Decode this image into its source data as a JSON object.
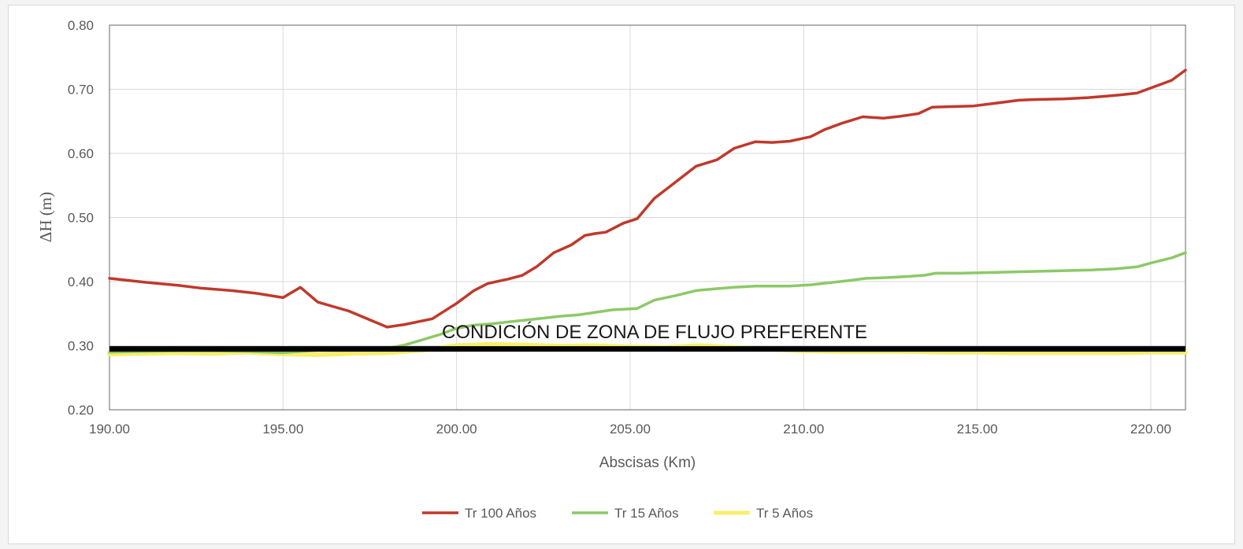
{
  "chart_data": {
    "type": "line",
    "xlabel": "Abscisas (Km)",
    "ylabel": "ΔH (m)",
    "xlim": [
      190,
      221
    ],
    "ylim": [
      0.2,
      0.8
    ],
    "x_ticks": [
      "190.00",
      "195.00",
      "200.00",
      "205.00",
      "210.00",
      "215.00",
      "220.00"
    ],
    "y_ticks": [
      "0.20",
      "0.30",
      "0.40",
      "0.50",
      "0.60",
      "0.70",
      "0.80"
    ],
    "grid": true,
    "legend_position": "bottom",
    "annotation": {
      "text": "CONDICIÓN DE ZONA DE FLUJO PREFERENTE",
      "threshold_y": 0.295,
      "color": "#000000"
    },
    "series": [
      {
        "name": "Tr 100 Años",
        "color": "#c0392b",
        "x": [
          190.0,
          191.0,
          192.0,
          192.6,
          193.5,
          194.2,
          195.0,
          195.5,
          196.0,
          196.9,
          197.6,
          198.0,
          198.5,
          199.3,
          200.0,
          200.5,
          200.9,
          201.5,
          201.9,
          202.3,
          202.8,
          203.3,
          203.7,
          204.0,
          204.3,
          204.8,
          205.2,
          205.7,
          206.3,
          206.9,
          207.5,
          208.0,
          208.6,
          209.1,
          209.6,
          210.2,
          210.6,
          211.1,
          211.7,
          212.3,
          212.8,
          213.3,
          213.7,
          214.3,
          214.9,
          215.5,
          216.2,
          216.7,
          217.5,
          218.2,
          219.1,
          219.6,
          220.0,
          220.6,
          221.0
        ],
        "y": [
          0.405,
          0.399,
          0.394,
          0.39,
          0.386,
          0.382,
          0.375,
          0.391,
          0.368,
          0.354,
          0.338,
          0.329,
          0.333,
          0.342,
          0.366,
          0.386,
          0.397,
          0.404,
          0.41,
          0.423,
          0.445,
          0.457,
          0.472,
          0.475,
          0.477,
          0.491,
          0.498,
          0.53,
          0.555,
          0.58,
          0.59,
          0.608,
          0.618,
          0.617,
          0.619,
          0.626,
          0.637,
          0.647,
          0.657,
          0.655,
          0.658,
          0.662,
          0.672,
          0.673,
          0.674,
          0.678,
          0.683,
          0.684,
          0.685,
          0.687,
          0.691,
          0.694,
          0.702,
          0.714,
          0.73
        ]
      },
      {
        "name": "Tr 15 Años",
        "color": "#8cc968",
        "x": [
          190.0,
          191.0,
          192.0,
          193.0,
          194.0,
          195.0,
          196.0,
          197.0,
          198.0,
          198.5,
          199.0,
          199.5,
          200.0,
          200.5,
          201.0,
          201.5,
          202.0,
          202.5,
          203.0,
          203.5,
          204.0,
          204.5,
          205.2,
          205.7,
          206.3,
          206.9,
          207.5,
          208.0,
          208.6,
          209.1,
          209.6,
          210.2,
          210.7,
          211.2,
          211.8,
          212.3,
          213.0,
          213.5,
          213.8,
          214.5,
          215.2,
          216.0,
          216.7,
          217.5,
          218.3,
          219.0,
          219.6,
          220.0,
          220.6,
          221.0
        ],
        "y": [
          0.29,
          0.291,
          0.292,
          0.292,
          0.291,
          0.289,
          0.293,
          0.293,
          0.296,
          0.301,
          0.309,
          0.317,
          0.327,
          0.332,
          0.334,
          0.337,
          0.34,
          0.343,
          0.346,
          0.348,
          0.352,
          0.356,
          0.358,
          0.371,
          0.378,
          0.386,
          0.389,
          0.391,
          0.393,
          0.393,
          0.393,
          0.395,
          0.398,
          0.401,
          0.405,
          0.406,
          0.408,
          0.41,
          0.413,
          0.413,
          0.414,
          0.415,
          0.416,
          0.417,
          0.418,
          0.42,
          0.423,
          0.429,
          0.437,
          0.445
        ]
      },
      {
        "name": "Tr 5 Años",
        "color": "#f7ef6d",
        "x": [
          190.0,
          191.0,
          192.0,
          193.0,
          194.0,
          195.0,
          196.0,
          197.0,
          198.0,
          199.0,
          200.0,
          201.0,
          202.0,
          203.0,
          204.0,
          205.0,
          206.0,
          207.0,
          208.0,
          209.0,
          210.0,
          211.0,
          212.0,
          213.0,
          214.0,
          215.0,
          216.0,
          217.0,
          218.0,
          219.0,
          220.0,
          221.0
        ],
        "y": [
          0.287,
          0.288,
          0.289,
          0.288,
          0.29,
          0.287,
          0.286,
          0.288,
          0.289,
          0.293,
          0.3,
          0.302,
          0.301,
          0.299,
          0.3,
          0.298,
          0.297,
          0.3,
          0.297,
          0.295,
          0.292,
          0.291,
          0.291,
          0.291,
          0.29,
          0.29,
          0.289,
          0.289,
          0.289,
          0.289,
          0.29,
          0.29
        ]
      }
    ]
  }
}
